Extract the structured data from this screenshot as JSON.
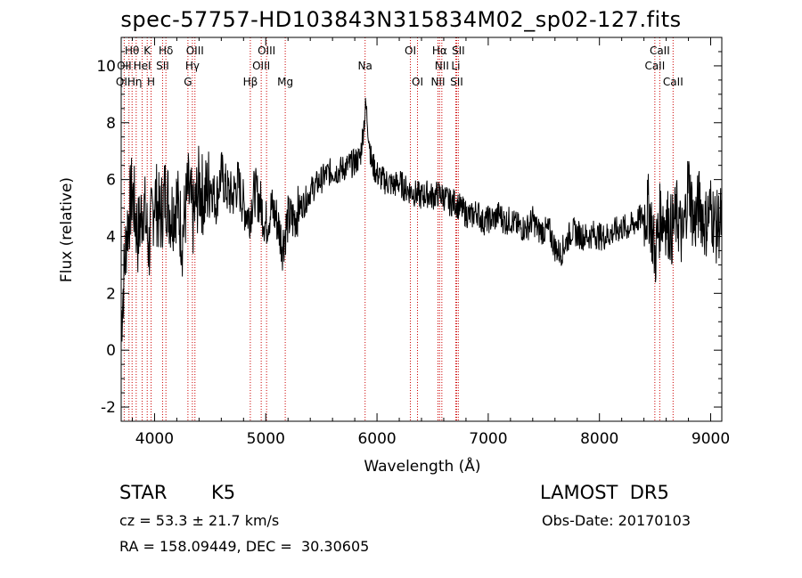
{
  "chart_data": {
    "type": "line",
    "title": "spec-57757-HD103843N315834M02_sp02-127.fits",
    "xlabel": "Wavelength (Å)",
    "ylabel": "Flux (relative)",
    "xlim": [
      3700,
      9100
    ],
    "ylim": [
      -2.5,
      11.0
    ],
    "xticks": [
      4000,
      5000,
      6000,
      7000,
      8000,
      9000
    ],
    "yticks": [
      -2,
      0,
      2,
      4,
      6,
      8,
      10
    ],
    "grid": false,
    "line_color": "#000000",
    "marker_line_color": "#cc0000",
    "series": [
      {
        "x": [
          3700,
          3750,
          3800,
          3850,
          3900,
          3950,
          4000,
          4050,
          4100,
          4150,
          4200,
          4250,
          4300,
          4350,
          4400,
          4450,
          4500,
          4550,
          4600,
          4650,
          4700,
          4750,
          4800,
          4850,
          4900,
          4950,
          5000,
          5050,
          5100,
          5150,
          5200,
          5250,
          5300,
          5350,
          5400,
          5450,
          5500,
          5550,
          5600,
          5650,
          5700,
          5750,
          5800,
          5850,
          5900,
          5950,
          6000,
          6050,
          6100,
          6150,
          6200,
          6250,
          6300,
          6350,
          6400,
          6450,
          6500,
          6550,
          6600,
          6650,
          6700,
          6750,
          6800,
          6850,
          6900,
          6950,
          7000,
          7050,
          7100,
          7150,
          7200,
          7250,
          7300,
          7350,
          7400,
          7450,
          7500,
          7550,
          7600,
          7650,
          7700,
          7750,
          7800,
          7850,
          7900,
          7950,
          8000,
          8050,
          8100,
          8150,
          8200,
          8250,
          8300,
          8350,
          8400,
          8450,
          8500,
          8550,
          8600,
          8650,
          8700,
          8750,
          8800,
          8850,
          8900,
          8950,
          9000,
          9050,
          9100
        ],
        "y": [
          1.0,
          4.2,
          5.6,
          4.0,
          5.2,
          3.6,
          5.5,
          4.6,
          5.6,
          4.8,
          5.3,
          4.0,
          5.6,
          4.6,
          5.8,
          5.3,
          6.0,
          5.2,
          6.2,
          5.6,
          5.4,
          5.9,
          5.1,
          4.7,
          5.6,
          5.2,
          4.4,
          5.0,
          4.6,
          3.7,
          4.6,
          4.6,
          5.0,
          5.2,
          5.6,
          5.8,
          6.0,
          6.2,
          6.3,
          6.3,
          6.4,
          6.5,
          6.6,
          6.8,
          8.6,
          6.6,
          6.2,
          6.0,
          5.9,
          5.8,
          5.9,
          5.7,
          5.6,
          5.5,
          5.4,
          5.5,
          5.4,
          5.5,
          5.4,
          5.2,
          5.2,
          5.0,
          4.8,
          4.7,
          4.9,
          4.5,
          4.6,
          4.6,
          4.8,
          4.5,
          4.6,
          4.4,
          4.3,
          4.3,
          4.6,
          4.2,
          4.2,
          4.2,
          3.6,
          3.4,
          3.8,
          4.2,
          4.1,
          4.0,
          4.0,
          4.1,
          4.0,
          4.0,
          4.1,
          4.2,
          4.3,
          4.3,
          4.4,
          4.6,
          4.7,
          5.0,
          3.3,
          4.8,
          4.6,
          4.2,
          4.8,
          3.8,
          6.0,
          4.4,
          5.2,
          4.4,
          5.0,
          4.3,
          4.6
        ]
      }
    ],
    "lines": [
      {
        "x": 3798,
        "label": "Hθ"
      },
      {
        "x": 3727,
        "label": "OII"
      },
      {
        "x": 3770,
        "label": "QIHη"
      },
      {
        "x": 3835,
        "label": ""
      },
      {
        "x": 3889,
        "label": "HeI"
      },
      {
        "x": 3934,
        "label": "K"
      },
      {
        "x": 3969,
        "label": "H"
      },
      {
        "x": 4072,
        "label": "SII"
      },
      {
        "x": 4102,
        "label": "Hδ"
      },
      {
        "x": 4300,
        "label": "G"
      },
      {
        "x": 4340,
        "label": "Hγ"
      },
      {
        "x": 4363,
        "label": "OIII"
      },
      {
        "x": 4861,
        "label": "Hβ"
      },
      {
        "x": 4959,
        "label": "OIII"
      },
      {
        "x": 5007,
        "label": "OIII"
      },
      {
        "x": 5175,
        "label": "Mg"
      },
      {
        "x": 5893,
        "label": "Na"
      },
      {
        "x": 6300,
        "label": "OI"
      },
      {
        "x": 6364,
        "label": "OI"
      },
      {
        "x": 6548,
        "label": "NII"
      },
      {
        "x": 6563,
        "label": "Hα"
      },
      {
        "x": 6583,
        "label": "NII"
      },
      {
        "x": 6708,
        "label": "Li"
      },
      {
        "x": 6716,
        "label": "SII"
      },
      {
        "x": 6731,
        "label": "SII"
      },
      {
        "x": 8498,
        "label": "CaII"
      },
      {
        "x": 8542,
        "label": "CaII"
      },
      {
        "x": 8662,
        "label": "CaII"
      }
    ]
  },
  "info": {
    "class": "STAR",
    "subclass": "K5",
    "survey": "LAMOST  DR5",
    "cz": "cz = 53.3 ± 21.7 km/s",
    "obsdate": "Obs-Date: 20170103",
    "coords": "RA = 158.09449, DEC =  30.30605"
  },
  "labels": [
    {
      "text": "Hθ"
    },
    {
      "text": "K"
    },
    {
      "text": "Hδ"
    },
    {
      "text": "OIII"
    },
    {
      "text": "OIII"
    },
    {
      "text": "OI"
    },
    {
      "text": "Hα"
    },
    {
      "text": "SII"
    },
    {
      "text": "CaII"
    },
    {
      "text": "OII"
    },
    {
      "text": "HeI"
    },
    {
      "text": "SII"
    },
    {
      "text": "Hγ"
    },
    {
      "text": "OIII"
    },
    {
      "text": "Na"
    },
    {
      "text": "NII"
    },
    {
      "text": "Li"
    },
    {
      "text": "CaII"
    },
    {
      "text": "QIHη"
    },
    {
      "text": "H"
    },
    {
      "text": "G"
    },
    {
      "text": "Hβ"
    },
    {
      "text": "Mg"
    },
    {
      "text": "OI"
    },
    {
      "text": "NII"
    },
    {
      "text": "SII"
    },
    {
      "text": "CaII"
    }
  ]
}
